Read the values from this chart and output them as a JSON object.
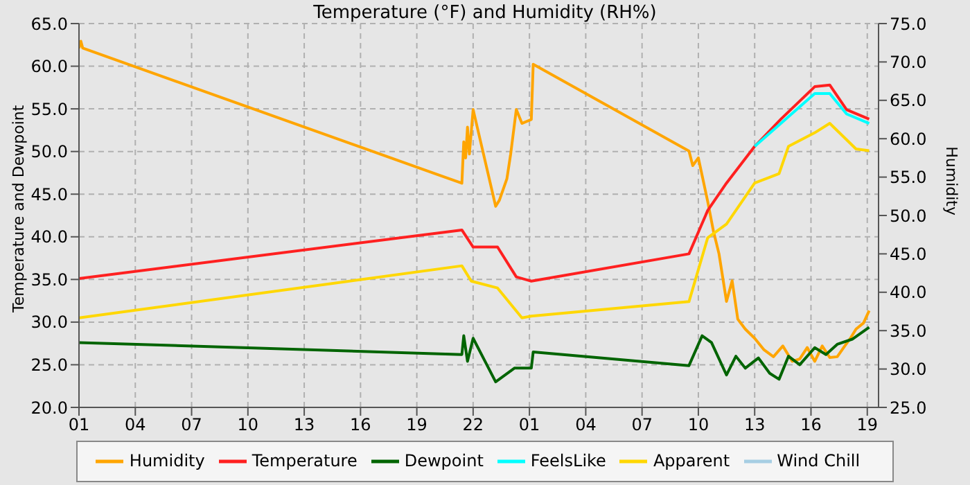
{
  "chart_data": {
    "type": "line",
    "title": "Temperature (°F) and Humidity (RH%)",
    "ylabel": "Temperature and Dewpoint",
    "y2label": "Humidity",
    "xlim": [
      "--01-01T01:00",
      "--01-02T19:36"
    ],
    "xticks": [
      {
        "value": "--01-01T01:00",
        "label": "01"
      },
      {
        "value": "--01-01T04:00",
        "label": "04"
      },
      {
        "value": "--01-01T07:00",
        "label": "07"
      },
      {
        "value": "--01-01T10:00",
        "label": "10"
      },
      {
        "value": "--01-01T13:00",
        "label": "13"
      },
      {
        "value": "--01-01T16:00",
        "label": "16"
      },
      {
        "value": "--01-01T19:00",
        "label": "19"
      },
      {
        "value": "--01-01T22:00",
        "label": "22"
      },
      {
        "value": "--01-02T01:00",
        "label": "01"
      },
      {
        "value": "--01-02T04:00",
        "label": "04"
      },
      {
        "value": "--01-02T07:00",
        "label": "07"
      },
      {
        "value": "--01-02T10:00",
        "label": "10"
      },
      {
        "value": "--01-02T13:00",
        "label": "13"
      },
      {
        "value": "--01-02T16:00",
        "label": "16"
      },
      {
        "value": "--01-02T19:00",
        "label": "19"
      }
    ],
    "ylim": [
      20,
      65
    ],
    "yticks": [
      {
        "value": 20,
        "label": "20.0"
      },
      {
        "value": 25,
        "label": "25.0"
      },
      {
        "value": 30,
        "label": "30.0"
      },
      {
        "value": 35,
        "label": "35.0"
      },
      {
        "value": 40,
        "label": "40.0"
      },
      {
        "value": 45,
        "label": "45.0"
      },
      {
        "value": 50,
        "label": "50.0"
      },
      {
        "value": 55,
        "label": "55.0"
      },
      {
        "value": 60,
        "label": "60.0"
      },
      {
        "value": 65,
        "label": "65.0"
      }
    ],
    "y2lim": [
      25,
      75
    ],
    "y2ticks": [
      {
        "value": 25,
        "label": "25.0"
      },
      {
        "value": 30,
        "label": "30.0"
      },
      {
        "value": 35,
        "label": "35.0"
      },
      {
        "value": 40,
        "label": "40.0"
      },
      {
        "value": 45,
        "label": "45.0"
      },
      {
        "value": 50,
        "label": "50.0"
      },
      {
        "value": 55,
        "label": "55.0"
      },
      {
        "value": 60,
        "label": "60.0"
      },
      {
        "value": 65,
        "label": "65.0"
      },
      {
        "value": 70,
        "label": "70.0"
      },
      {
        "value": 75,
        "label": "75.0"
      }
    ],
    "grid": true,
    "legend": "bottom",
    "line_style": "solid",
    "marker": "none",
    "series": [
      {
        "name": "Humidity",
        "color": "#ffa500",
        "axis": "y2",
        "x": [
          "--01-01T01:00",
          "--01-01T01:06",
          "--01-01T01:12",
          "--01-01T21:24",
          "--01-01T21:30",
          "--01-01T21:36",
          "--01-01T21:42",
          "--01-01T21:48",
          "--01-01T22:00",
          "--01-01T23:12",
          "--01-01T23:24",
          "--01-01T23:48",
          "--01-02T00:00",
          "--01-02T00:18",
          "--01-02T00:36",
          "--01-02T01:06",
          "--01-02T01:12",
          "--01-02T09:30",
          "--01-02T09:42",
          "--01-02T10:00",
          "--01-02T10:30",
          "--01-02T10:48",
          "--01-02T11:06",
          "--01-02T11:30",
          "--01-02T11:48",
          "--01-02T12:06",
          "--01-02T12:30",
          "--01-02T13:00",
          "--01-02T13:30",
          "--01-02T14:00",
          "--01-02T14:30",
          "--01-02T15:00",
          "--01-02T15:24",
          "--01-02T15:48",
          "--01-02T16:12",
          "--01-02T16:36",
          "--01-02T17:00",
          "--01-02T17:24",
          "--01-02T17:48",
          "--01-02T18:06",
          "--01-02T18:24",
          "--01-02T18:48",
          "--01-02T19:06"
        ],
        "values": [
          71.8,
          72.7,
          71.8,
          54.2,
          59.6,
          57.5,
          61.5,
          58.0,
          63.8,
          51.2,
          52.0,
          54.8,
          58.0,
          63.8,
          62.0,
          62.5,
          69.7,
          58.4,
          56.5,
          57.5,
          51.8,
          48.0,
          45.0,
          38.8,
          41.5,
          36.5,
          35.2,
          34.0,
          32.5,
          31.6,
          33.0,
          31.0,
          31.3,
          32.8,
          31.0,
          33.0,
          31.5,
          31.6,
          33.0,
          34.0,
          35.2,
          36.0,
          37.6
        ]
      },
      {
        "name": "Temperature",
        "color": "#ff2020",
        "x": [
          "--01-01T01:00",
          "--01-01T21:24",
          "--01-01T22:00",
          "--01-01T23:18",
          "--01-02T00:18",
          "--01-02T01:06",
          "--01-02T09:30",
          "--01-02T10:30",
          "--01-02T11:30",
          "--01-02T13:00",
          "--01-02T14:24",
          "--01-02T16:12",
          "--01-02T17:00",
          "--01-02T17:54",
          "--01-02T19:06"
        ],
        "values": [
          35.1,
          40.8,
          38.8,
          38.8,
          35.3,
          34.8,
          38.0,
          43.1,
          46.3,
          50.6,
          53.8,
          57.6,
          57.8,
          54.9,
          53.8
        ]
      },
      {
        "name": "Dewpoint",
        "color": "#006400",
        "x": [
          "--01-01T01:00",
          "--01-01T21:24",
          "--01-01T21:30",
          "--01-01T21:42",
          "--01-01T22:00",
          "--01-01T23:12",
          "--01-02T00:12",
          "--01-02T01:06",
          "--01-02T01:12",
          "--01-02T09:30",
          "--01-02T10:12",
          "--01-02T10:42",
          "--01-02T11:30",
          "--01-02T12:00",
          "--01-02T12:30",
          "--01-02T13:12",
          "--01-02T13:48",
          "--01-02T14:18",
          "--01-02T14:48",
          "--01-02T15:24",
          "--01-02T16:12",
          "--01-02T16:48",
          "--01-02T17:24",
          "--01-02T18:12",
          "--01-02T19:06"
        ],
        "values": [
          27.6,
          26.2,
          28.4,
          25.4,
          28.1,
          23.0,
          24.6,
          24.6,
          26.5,
          24.9,
          28.4,
          27.6,
          23.8,
          26.0,
          24.6,
          25.8,
          24.0,
          23.3,
          26.0,
          25.0,
          27.0,
          26.2,
          27.4,
          28.0,
          29.4
        ]
      },
      {
        "name": "FeelsLike",
        "color": "#00ffff",
        "x": [
          "--01-02T13:00",
          "--01-02T14:24",
          "--01-02T16:12",
          "--01-02T17:00",
          "--01-02T17:54",
          "--01-02T19:06"
        ],
        "values": [
          50.6,
          53.3,
          56.8,
          56.8,
          54.4,
          53.3
        ]
      },
      {
        "name": "Apparent",
        "color": "#ffd700",
        "x": [
          "--01-01T01:00",
          "--01-01T21:24",
          "--01-01T21:54",
          "--01-01T23:18",
          "--01-02T00:36",
          "--01-02T01:06",
          "--01-02T09:30",
          "--01-02T10:30",
          "--01-02T11:30",
          "--01-02T13:00",
          "--01-02T14:18",
          "--01-02T14:48",
          "--01-02T16:12",
          "--01-02T17:00",
          "--01-02T18:24",
          "--01-02T19:06"
        ],
        "values": [
          30.5,
          36.6,
          34.8,
          34.0,
          30.5,
          30.7,
          32.4,
          39.9,
          41.5,
          46.3,
          47.4,
          50.6,
          52.2,
          53.3,
          50.3,
          50.1
        ]
      },
      {
        "name": "Wind Chill",
        "color": "#a6cee3"
      }
    ]
  }
}
